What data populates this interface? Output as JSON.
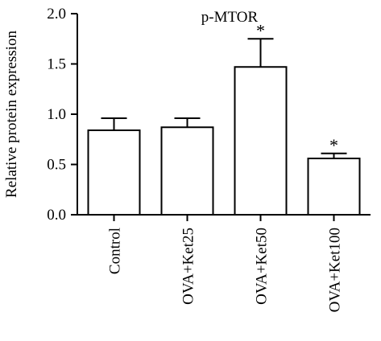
{
  "chart_data": {
    "type": "bar",
    "title": "p-MTOR",
    "xlabel": "",
    "ylabel": "Relative protein expression",
    "categories": [
      "Control",
      "OVA+Ket25",
      "OVA+Ket50",
      "OVA+Ket100"
    ],
    "values": [
      0.84,
      0.87,
      1.47,
      0.56
    ],
    "errors": [
      0.12,
      0.09,
      0.28,
      0.05
    ],
    "significance": [
      "",
      "",
      "*",
      "*"
    ],
    "ylim": [
      0,
      2.0
    ],
    "yticks": [
      0.0,
      0.5,
      1.0,
      1.5,
      2.0
    ],
    "ytick_labels": [
      "0.0",
      "0.5",
      "1.0",
      "1.5",
      "2.0"
    ],
    "grid": false,
    "colors": {
      "bar_fill": "#ffffff",
      "bar_stroke": "#000000"
    }
  }
}
